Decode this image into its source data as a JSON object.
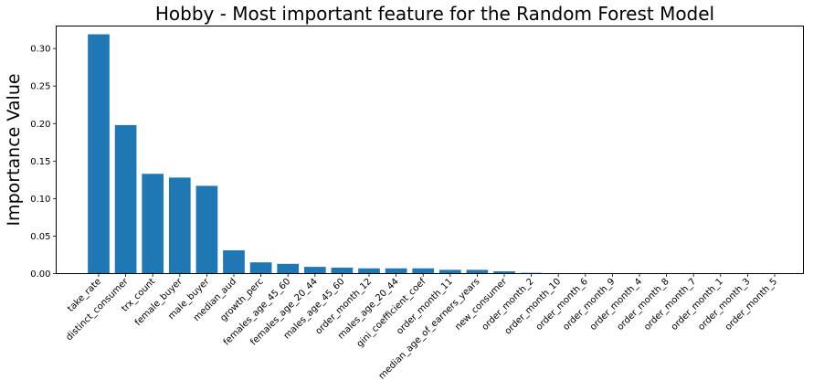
{
  "chart_data": {
    "type": "bar",
    "title": "Hobby - Most important feature for the Random Forest Model",
    "xlabel": "",
    "ylabel": "Importance Value",
    "ylim": [
      0,
      0.33
    ],
    "yticks": [
      "0.00",
      "0.05",
      "0.10",
      "0.15",
      "0.20",
      "0.25",
      "0.30"
    ],
    "ytick_values": [
      0,
      0.05,
      0.1,
      0.15,
      0.2,
      0.25,
      0.3
    ],
    "bar_color": "#1f77b4",
    "grid": false,
    "categories": [
      "take_rate",
      "distinct_consumer",
      "trx_count",
      "female_buyer",
      "male_buyer",
      "median_aud",
      "growth_perc",
      "females_age_45_60",
      "females_age_20_44",
      "males_age_45_60",
      "order_month_12",
      "males_age_20_44",
      "gini_coefficient_coef",
      "order_month_11",
      "median_age_of_earners_years",
      "new_consumer",
      "order_month_2",
      "order_month_10",
      "order_month_6",
      "order_month_9",
      "order_month_4",
      "order_month_8",
      "order_month_7",
      "order_month_1",
      "order_month_3",
      "order_month_5"
    ],
    "values": [
      0.319,
      0.198,
      0.133,
      0.128,
      0.117,
      0.031,
      0.015,
      0.013,
      0.009,
      0.008,
      0.007,
      0.007,
      0.007,
      0.005,
      0.005,
      0.003,
      0.001,
      0.0003,
      0.0002,
      0.0002,
      0.0002,
      0.0002,
      0.0002,
      0.0002,
      0.0002,
      0.0002
    ]
  }
}
